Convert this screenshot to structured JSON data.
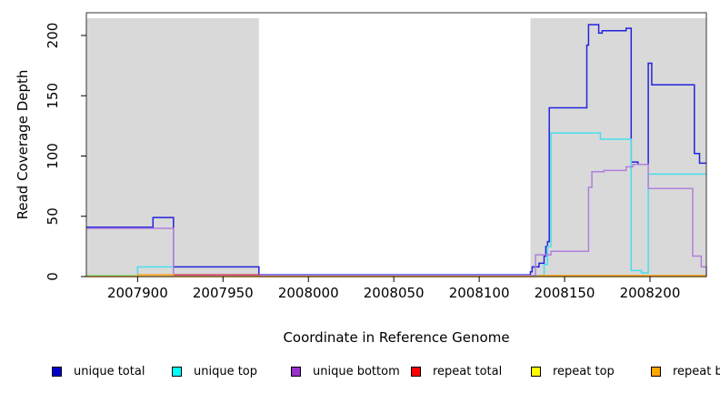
{
  "figure": {
    "background": "#ffffff",
    "highlight_region_color": "#d9d9d9",
    "plot_border_color": "#333333"
  },
  "chart_data": {
    "type": "line",
    "subtype": "step-after",
    "title": "",
    "xlabel": "Coordinate in Reference Genome",
    "ylabel": "Read Coverage Depth",
    "xlim": [
      2007870,
      2008233
    ],
    "ylim": [
      0,
      219
    ],
    "grid": false,
    "legend_position": "bottom",
    "x_ticks": [
      2007900,
      2007950,
      2008000,
      2008050,
      2008100,
      2008150,
      2008200
    ],
    "y_ticks": [
      0,
      50,
      100,
      150,
      200
    ],
    "shaded_regions": [
      {
        "x0": 2007870,
        "x1": 2007971,
        "color": "#d9d9d9"
      },
      {
        "x0": 2008130,
        "x1": 2008233,
        "color": "#d9d9d9"
      }
    ],
    "series": [
      {
        "name": "unique-total",
        "label": "unique total",
        "color": "#0000CD",
        "line_color": "#2323DC",
        "points": [
          [
            2007870,
            41
          ],
          [
            2007909,
            49
          ],
          [
            2007921,
            8
          ],
          [
            2007971,
            1.4
          ],
          [
            2008130,
            4
          ],
          [
            2008131,
            8
          ],
          [
            2008135,
            11
          ],
          [
            2008138,
            17
          ],
          [
            2008139,
            25
          ],
          [
            2008140,
            29
          ],
          [
            2008141,
            140
          ],
          [
            2008163,
            192
          ],
          [
            2008164,
            209
          ],
          [
            2008170,
            202
          ],
          [
            2008172,
            204
          ],
          [
            2008186,
            206
          ],
          [
            2008189,
            95
          ],
          [
            2008193,
            93
          ],
          [
            2008199,
            177
          ],
          [
            2008201,
            159
          ],
          [
            2008226,
            102
          ],
          [
            2008229,
            94
          ],
          [
            2008233,
            94
          ]
        ]
      },
      {
        "name": "unique-top",
        "label": "unique top",
        "color": "#00FFFF",
        "line_color": "#45DFEA",
        "points": [
          [
            2007870,
            0.9
          ],
          [
            2007900,
            8
          ],
          [
            2007921,
            0.9
          ],
          [
            2008138,
            10
          ],
          [
            2008140,
            25
          ],
          [
            2008142,
            119
          ],
          [
            2008171,
            114
          ],
          [
            2008189,
            5
          ],
          [
            2008195,
            3
          ],
          [
            2008199,
            85
          ],
          [
            2008233,
            85
          ]
        ]
      },
      {
        "name": "unique-bottom",
        "label": "unique bottom",
        "color": "#9932CC",
        "line_color": "#AF7FDE",
        "points": [
          [
            2007870,
            40
          ],
          [
            2007921,
            1
          ],
          [
            2008133,
            18
          ],
          [
            2008142,
            21
          ],
          [
            2008164,
            74
          ],
          [
            2008166,
            87
          ],
          [
            2008173,
            88
          ],
          [
            2008186,
            91
          ],
          [
            2008190,
            93
          ],
          [
            2008199,
            73
          ],
          [
            2008225,
            17
          ],
          [
            2008230,
            8
          ],
          [
            2008233,
            0
          ]
        ]
      },
      {
        "name": "repeat-total",
        "label": "repeat total",
        "color": "#FF0000",
        "line_color": "#D84A66",
        "points": [
          [
            2007870,
            0
          ],
          [
            2007921,
            1.5
          ],
          [
            2007971,
            0
          ],
          [
            2008233,
            0
          ]
        ]
      },
      {
        "name": "repeat-top",
        "label": "repeat top",
        "color": "#FFFF00",
        "line_color": "#D8E23C",
        "points": [
          [
            2007870,
            0.5
          ],
          [
            2007900,
            0
          ],
          [
            2008233,
            0
          ]
        ]
      },
      {
        "name": "repeat-bottom",
        "label": "repeat bottom",
        "color": "#FFA500",
        "line_color": "#FFA517",
        "points": [
          [
            2007870,
            0
          ],
          [
            2007900,
            1.5
          ],
          [
            2007921,
            0
          ],
          [
            2008135,
            0.8
          ],
          [
            2008233,
            0.8
          ]
        ]
      }
    ]
  }
}
